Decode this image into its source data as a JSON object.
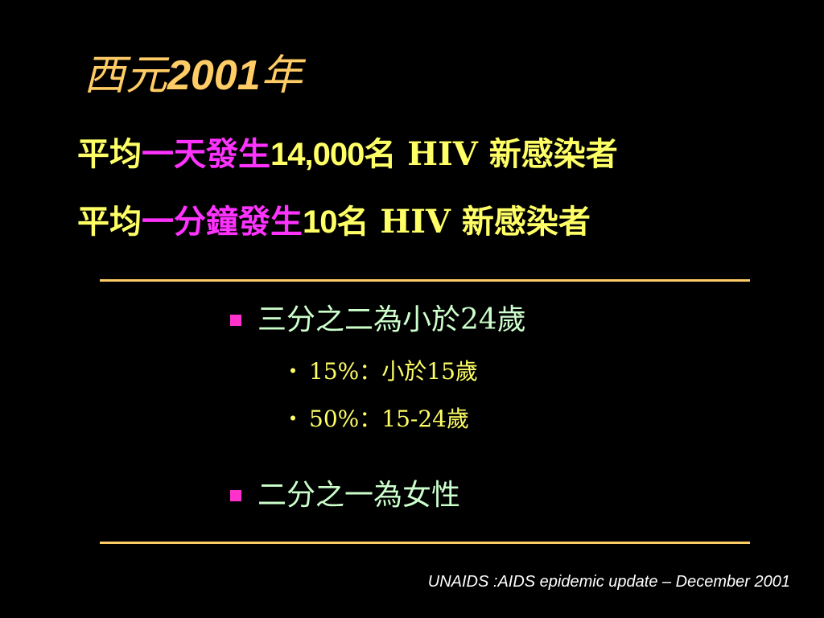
{
  "colors": {
    "background": "#000000",
    "title": "#FFCC66",
    "headline": "#FFFF66",
    "highlight": "#FF33FF",
    "rule": "#FFCC66",
    "bullet_text": "#CCFFCC",
    "bullet_marker": "#FF33CC",
    "sub_text": "#FFFF66",
    "source": "#FFFFFF"
  },
  "title": {
    "prefix": "西元",
    "year": "2001",
    "suffix": "年"
  },
  "lines": [
    {
      "lead": "平均",
      "highlight": "一天發生",
      "number": "14,000",
      "unit": "名",
      "rest": " HIV 新感染者"
    },
    {
      "lead": "平均",
      "highlight": "一分鐘發生",
      "number": "10",
      "unit": "名",
      "rest": " HIV 新感染者"
    }
  ],
  "bullets": [
    {
      "text": "三分之二為小於24歲",
      "subitems": [
        {
          "marker": "・",
          "text": "15%：小於15歲"
        },
        {
          "marker": "・",
          "text": "50%：15-24歲"
        }
      ]
    },
    {
      "text": "二分之一為女性",
      "subitems": []
    }
  ],
  "source": "UNAIDS :AIDS epidemic update – December 2001"
}
